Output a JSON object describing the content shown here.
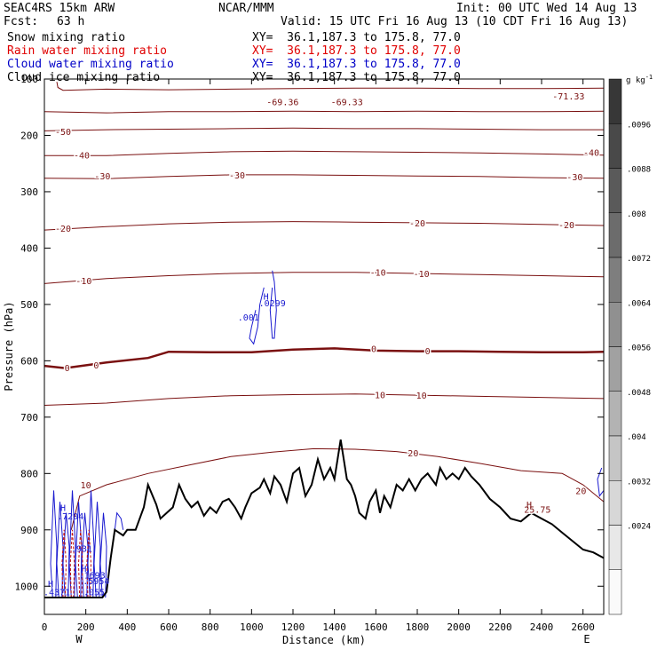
{
  "header": {
    "model": "SEAC4RS 15km ARW",
    "org": "NCAR/MMM",
    "init": "Init: 00 UTC Wed 14 Aug 13",
    "fcst_label": "Fcst:",
    "fcst_value": "63 h",
    "valid": "Valid: 15 UTC Fri 16 Aug 13 (10 CDT Fri 16 Aug 13)"
  },
  "fields": [
    {
      "name": "Snow mixing ratio",
      "xy": "XY=  36.1,187.3 to 175.8, 77.0",
      "color": "#000000"
    },
    {
      "name": "Rain water mixing ratio",
      "xy": "XY=  36.1,187.3 to 175.8, 77.0",
      "color": "#e00000"
    },
    {
      "name": "Cloud water mixing ratio",
      "xy": "XY=  36.1,187.3 to 175.8, 77.0",
      "color": "#0000c8"
    },
    {
      "name": "Cloud ice mixing ratio",
      "xy": "XY=  36.1,187.3 to 175.8, 77.0",
      "color": "#000000"
    }
  ],
  "colors": {
    "temperature": "#7a1010",
    "cloud_water": "#1a1ad0",
    "rain": "#c01010",
    "terrain": "#000000"
  },
  "chart_data": {
    "type": "cross-section",
    "xlabel": "Distance (km)",
    "ylabel": "Pressure (hPa)",
    "xlim": [
      0,
      2700
    ],
    "ylim": [
      1050,
      100
    ],
    "x_ticks": [
      "0",
      "200",
      "400",
      "600",
      "800",
      "1000",
      "1200",
      "1400",
      "1600",
      "1800",
      "2000",
      "2200",
      "2400",
      "2600"
    ],
    "y_ticks": [
      "100",
      "200",
      "300",
      "400",
      "500",
      "600",
      "700",
      "800",
      "900",
      "1000"
    ],
    "end_labels": {
      "left": "W",
      "right": "E"
    },
    "colorbar": {
      "unit": "g kg",
      "unit_exp": "-1",
      "labels": [
        ".0096",
        ".0088",
        ".008",
        ".0072",
        ".0064",
        ".0056",
        ".0048",
        ".004",
        ".0032",
        ".0024"
      ],
      "levels": [
        0.0024,
        0.0032,
        0.004,
        0.0048,
        0.0056,
        0.0064,
        0.0072,
        0.008,
        0.0088,
        0.0096
      ]
    },
    "isotherms": [
      {
        "t": -70,
        "points": [
          [
            60,
            105
          ],
          [
            65,
            115
          ],
          [
            90,
            120
          ],
          [
            300,
            118
          ],
          [
            600,
            119
          ],
          [
            900,
            118
          ],
          [
            1200,
            117
          ],
          [
            1500,
            116
          ],
          [
            1800,
            116
          ],
          [
            2100,
            117
          ],
          [
            2400,
            117
          ],
          [
            2700,
            116
          ]
        ]
      },
      {
        "t": -60,
        "points": [
          [
            0,
            158
          ],
          [
            300,
            160
          ],
          [
            600,
            158
          ],
          [
            900,
            158
          ],
          [
            1200,
            157
          ],
          [
            1500,
            158
          ],
          [
            1800,
            157
          ],
          [
            2100,
            158
          ],
          [
            2400,
            158
          ],
          [
            2700,
            157
          ]
        ]
      },
      {
        "t": -50,
        "points": [
          [
            0,
            192
          ],
          [
            300,
            190
          ],
          [
            600,
            189
          ],
          [
            900,
            188
          ],
          [
            1200,
            187
          ],
          [
            1500,
            188
          ],
          [
            1800,
            188
          ],
          [
            2100,
            189
          ],
          [
            2400,
            190
          ],
          [
            2700,
            190
          ]
        ]
      },
      {
        "t": -40,
        "points": [
          [
            0,
            236
          ],
          [
            300,
            236
          ],
          [
            600,
            232
          ],
          [
            900,
            229
          ],
          [
            1200,
            228
          ],
          [
            1500,
            229
          ],
          [
            1800,
            230
          ],
          [
            2100,
            231
          ],
          [
            2400,
            233
          ],
          [
            2700,
            235
          ]
        ]
      },
      {
        "t": -30,
        "points": [
          [
            0,
            276
          ],
          [
            300,
            277
          ],
          [
            600,
            273
          ],
          [
            900,
            270
          ],
          [
            1200,
            270
          ],
          [
            1500,
            271
          ],
          [
            1800,
            272
          ],
          [
            2100,
            273
          ],
          [
            2400,
            275
          ],
          [
            2700,
            276
          ]
        ]
      },
      {
        "t": -20,
        "points": [
          [
            0,
            368
          ],
          [
            300,
            362
          ],
          [
            600,
            357
          ],
          [
            900,
            354
          ],
          [
            1200,
            353
          ],
          [
            1500,
            354
          ],
          [
            1800,
            355
          ],
          [
            2100,
            356
          ],
          [
            2400,
            358
          ],
          [
            2700,
            360
          ]
        ]
      },
      {
        "t": -10,
        "points": [
          [
            0,
            463
          ],
          [
            300,
            454
          ],
          [
            600,
            449
          ],
          [
            900,
            445
          ],
          [
            1200,
            443
          ],
          [
            1500,
            443
          ],
          [
            1800,
            445
          ],
          [
            2100,
            447
          ],
          [
            2400,
            449
          ],
          [
            2700,
            451
          ]
        ]
      },
      {
        "t": 0,
        "points": [
          [
            0,
            609
          ],
          [
            100,
            613
          ],
          [
            300,
            603
          ],
          [
            500,
            595
          ],
          [
            600,
            584
          ],
          [
            800,
            585
          ],
          [
            1000,
            585
          ],
          [
            1200,
            580
          ],
          [
            1400,
            578
          ],
          [
            1600,
            582
          ],
          [
            1800,
            583
          ],
          [
            2000,
            583
          ],
          [
            2200,
            584
          ],
          [
            2400,
            585
          ],
          [
            2600,
            585
          ],
          [
            2700,
            584
          ]
        ]
      },
      {
        "t": 10,
        "points": [
          [
            0,
            679
          ],
          [
            300,
            675
          ],
          [
            600,
            667
          ],
          [
            900,
            662
          ],
          [
            1200,
            660
          ],
          [
            1500,
            659
          ],
          [
            1800,
            661
          ],
          [
            2100,
            663
          ],
          [
            2400,
            665
          ],
          [
            2700,
            667
          ]
        ]
      },
      {
        "t": 20,
        "points": [
          [
            130,
            900
          ],
          [
            170,
            840
          ],
          [
            300,
            820
          ],
          [
            500,
            800
          ],
          [
            700,
            785
          ],
          [
            900,
            770
          ],
          [
            1100,
            762
          ],
          [
            1300,
            756
          ],
          [
            1500,
            757
          ],
          [
            1700,
            761
          ],
          [
            1900,
            770
          ],
          [
            2100,
            782
          ],
          [
            2300,
            795
          ],
          [
            2500,
            800
          ],
          [
            2600,
            820
          ],
          [
            2700,
            850
          ]
        ]
      }
    ],
    "temp_labels": [
      {
        "text": "-69.36",
        "x": 1150,
        "y": 140
      },
      {
        "text": "-69.33",
        "x": 1460,
        "y": 140
      },
      {
        "text": "-71.33",
        "x": 2530,
        "y": 130
      },
      {
        "text": "-50",
        "x": 90,
        "y": 193
      },
      {
        "text": "-40",
        "x": 180,
        "y": 235
      },
      {
        "text": "-40",
        "x": 2640,
        "y": 230
      },
      {
        "text": "-30",
        "x": 280,
        "y": 272
      },
      {
        "text": "-30",
        "x": 930,
        "y": 270
      },
      {
        "text": "-30",
        "x": 2560,
        "y": 273
      },
      {
        "text": "-20",
        "x": 90,
        "y": 365
      },
      {
        "text": "-20",
        "x": 1800,
        "y": 355
      },
      {
        "text": "-20",
        "x": 2520,
        "y": 358
      },
      {
        "text": "-10",
        "x": 190,
        "y": 458
      },
      {
        "text": "-10",
        "x": 1610,
        "y": 443
      },
      {
        "text": "-10",
        "x": 1820,
        "y": 445
      },
      {
        "text": "0",
        "x": 110,
        "y": 612
      },
      {
        "text": "0",
        "x": 250,
        "y": 607
      },
      {
        "text": "0",
        "x": 1590,
        "y": 578
      },
      {
        "text": "0",
        "x": 1850,
        "y": 582
      },
      {
        "text": "10",
        "x": 1620,
        "y": 660
      },
      {
        "text": "10",
        "x": 1820,
        "y": 661
      },
      {
        "text": "20",
        "x": 1780,
        "y": 763
      },
      {
        "text": "20",
        "x": 2590,
        "y": 830
      },
      {
        "text": "10",
        "x": 200,
        "y": 820
      },
      {
        "text": "25.75",
        "x": 2380,
        "y": 863
      }
    ],
    "terrain": [
      [
        0,
        1020
      ],
      [
        150,
        1020
      ],
      [
        280,
        1020
      ],
      [
        300,
        1010
      ],
      [
        320,
        950
      ],
      [
        340,
        900
      ],
      [
        380,
        910
      ],
      [
        400,
        900
      ],
      [
        440,
        900
      ],
      [
        480,
        860
      ],
      [
        500,
        820
      ],
      [
        540,
        855
      ],
      [
        560,
        880
      ],
      [
        590,
        870
      ],
      [
        620,
        860
      ],
      [
        650,
        820
      ],
      [
        680,
        845
      ],
      [
        710,
        860
      ],
      [
        740,
        850
      ],
      [
        770,
        875
      ],
      [
        800,
        860
      ],
      [
        830,
        870
      ],
      [
        860,
        850
      ],
      [
        890,
        845
      ],
      [
        920,
        860
      ],
      [
        950,
        880
      ],
      [
        970,
        860
      ],
      [
        1000,
        835
      ],
      [
        1040,
        825
      ],
      [
        1060,
        810
      ],
      [
        1090,
        835
      ],
      [
        1110,
        805
      ],
      [
        1140,
        820
      ],
      [
        1170,
        850
      ],
      [
        1200,
        800
      ],
      [
        1230,
        790
      ],
      [
        1260,
        840
      ],
      [
        1290,
        820
      ],
      [
        1320,
        775
      ],
      [
        1350,
        810
      ],
      [
        1380,
        790
      ],
      [
        1400,
        810
      ],
      [
        1430,
        740
      ],
      [
        1460,
        810
      ],
      [
        1480,
        820
      ],
      [
        1500,
        840
      ],
      [
        1520,
        870
      ],
      [
        1550,
        880
      ],
      [
        1570,
        850
      ],
      [
        1600,
        830
      ],
      [
        1620,
        870
      ],
      [
        1640,
        840
      ],
      [
        1670,
        860
      ],
      [
        1700,
        820
      ],
      [
        1730,
        830
      ],
      [
        1760,
        810
      ],
      [
        1790,
        830
      ],
      [
        1820,
        810
      ],
      [
        1850,
        800
      ],
      [
        1890,
        820
      ],
      [
        1910,
        790
      ],
      [
        1940,
        810
      ],
      [
        1970,
        800
      ],
      [
        2000,
        810
      ],
      [
        2030,
        790
      ],
      [
        2060,
        805
      ],
      [
        2100,
        820
      ],
      [
        2150,
        845
      ],
      [
        2200,
        860
      ],
      [
        2250,
        880
      ],
      [
        2300,
        885
      ],
      [
        2350,
        870
      ],
      [
        2400,
        880
      ],
      [
        2450,
        890
      ],
      [
        2500,
        905
      ],
      [
        2550,
        920
      ],
      [
        2600,
        935
      ],
      [
        2650,
        940
      ],
      [
        2700,
        950
      ]
    ],
    "cloud_water_labels": [
      {
        "text": "H",
        "x": 1070,
        "y": 485
      },
      {
        "text": ".0299",
        "x": 1100,
        "y": 497
      },
      {
        "text": ".001",
        "x": 985,
        "y": 522
      },
      {
        "text": "H",
        "x": 90,
        "y": 860
      },
      {
        "text": ".7204",
        "x": 125,
        "y": 875
      },
      {
        "text": ".931",
        "x": 180,
        "y": 933
      },
      {
        "text": "H",
        "x": 190,
        "y": 968
      },
      {
        "text": ".1693",
        "x": 230,
        "y": 980
      },
      {
        "text": ".5954",
        "x": 250,
        "y": 990
      },
      {
        "text": "H",
        "x": 30,
        "y": 995
      },
      {
        "text": ".4371",
        "x": 60,
        "y": 1010
      },
      {
        "text": ".055",
        "x": 240,
        "y": 1010
      },
      {
        "text": "H",
        "x": 2340,
        "y": 855
      }
    ]
  }
}
